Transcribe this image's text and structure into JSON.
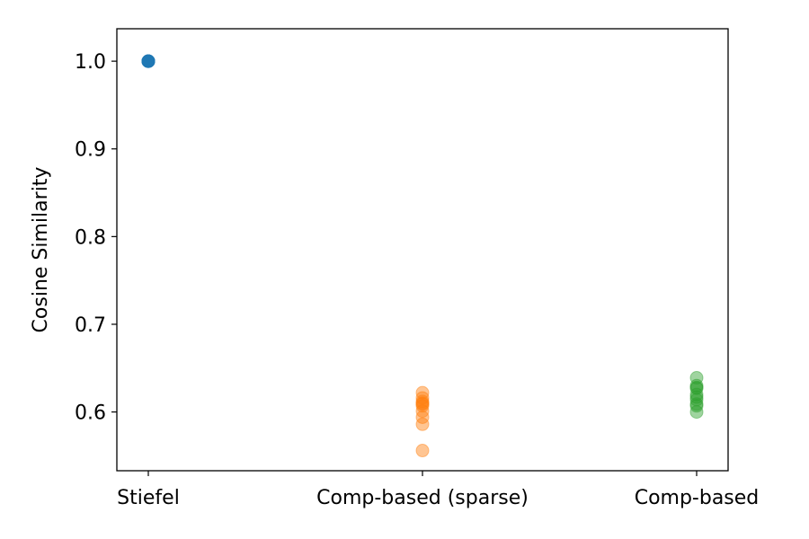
{
  "chart_data": {
    "type": "scatter",
    "categories": [
      "Stiefel",
      "Comp-based (sparse)",
      "Comp-based"
    ],
    "ylabel": "Cosine Similarity",
    "xlabel": "",
    "title": "",
    "ylim": [
      0.533,
      1.037
    ],
    "yticks": [
      "0.6",
      "0.7",
      "0.8",
      "0.9",
      "1.0"
    ],
    "grid": false,
    "series": [
      {
        "category": "Stiefel",
        "color": "#1f77b4",
        "opacity": 0.45,
        "values": [
          1.0,
          1.0,
          1.0,
          1.0,
          1.0,
          1.0,
          1.0,
          1.0,
          1.0,
          1.0
        ]
      },
      {
        "category": "Comp-based (sparse)",
        "color": "#ff7f0e",
        "opacity": 0.45,
        "values": [
          0.622,
          0.616,
          0.612,
          0.609,
          0.607,
          0.601,
          0.594,
          0.586,
          0.556,
          0.61
        ]
      },
      {
        "category": "Comp-based",
        "color": "#2ca02c",
        "opacity": 0.45,
        "values": [
          0.639,
          0.63,
          0.627,
          0.62,
          0.617,
          0.614,
          0.609,
          0.607,
          0.6,
          0.628
        ]
      }
    ]
  }
}
